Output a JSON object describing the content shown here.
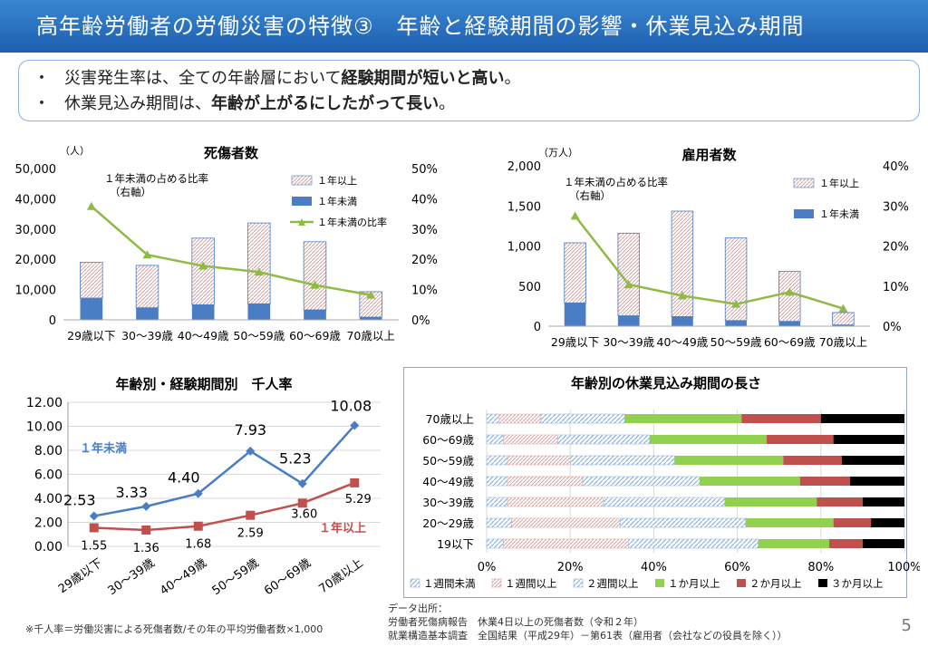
{
  "page_title": "高年齢労働者の労働災害の特徴③　年齢と経験期間の影響・休業見込み期間",
  "summary": [
    {
      "pre": "災害発生率は、全ての年齢層において",
      "bold": "経験期間が短いと高い",
      "post": "。"
    },
    {
      "pre": "休業見込み期間は、",
      "bold": "年齢が上がるにしたがって長い",
      "post": "。"
    }
  ],
  "bullet": "・",
  "colors": {
    "over1": "#f4c6c6",
    "under1": "#4a7dc4",
    "line": "#8fba45",
    "blue": "#4a7dc4",
    "red": "#c0504d",
    "green": "#92d050",
    "black": "#000000",
    "lightblue": "#a9c7e8"
  },
  "chart_data": [
    {
      "type": "bar",
      "title": "死傷者数",
      "ylabel": "（人）",
      "ylim": [
        0,
        50000
      ],
      "y2lim": [
        0,
        50
      ],
      "categories": [
        "29歳以下",
        "30～39歳",
        "40～49歳",
        "50～59歳",
        "60～69歳",
        "70歳以上"
      ],
      "series": [
        {
          "name": "１年未満",
          "values": [
            7200,
            4000,
            5000,
            5300,
            3300,
            900
          ]
        },
        {
          "name": "１年以上",
          "values": [
            11800,
            14000,
            22000,
            26700,
            22500,
            8400
          ]
        },
        {
          "name": "１年未満の比率",
          "values": [
            37.5,
            21.5,
            17.8,
            15.8,
            11.5,
            8.2
          ],
          "axis": "right"
        }
      ],
      "yticks": [
        "0",
        "10,000",
        "20,000",
        "30,000",
        "40,000",
        "50,000"
      ],
      "y2ticks": [
        "0%",
        "10%",
        "20%",
        "30%",
        "40%",
        "50%"
      ],
      "annotation": [
        "１年未満の占める比率",
        "（右軸）"
      ]
    },
    {
      "type": "bar",
      "title": "雇用者数",
      "ylabel": "（万人）",
      "ylim": [
        0,
        2000
      ],
      "y2lim": [
        0,
        40
      ],
      "categories": [
        "29歳以下",
        "30～39歳",
        "40～49歳",
        "50～59歳",
        "60～69歳",
        "70歳以上"
      ],
      "series": [
        {
          "name": "１年未満",
          "values": [
            290,
            130,
            120,
            70,
            60,
            15
          ]
        },
        {
          "name": "１年以上",
          "values": [
            750,
            1030,
            1315,
            1030,
            625,
            155
          ]
        },
        {
          "name": "１年未満の比率",
          "values": [
            27.5,
            10.4,
            7.6,
            5.5,
            8.5,
            4.4
          ],
          "axis": "right"
        }
      ],
      "yticks": [
        "0",
        "500",
        "1,000",
        "1,500",
        "2,000"
      ],
      "y2ticks": [
        "0%",
        "10%",
        "20%",
        "30%",
        "40%"
      ],
      "annotation": [
        "１年未満の占める比率",
        "（右軸）"
      ]
    },
    {
      "type": "line",
      "title": "年齢別・経験期間別　千人率",
      "ylim": [
        0,
        12
      ],
      "categories": [
        "29歳以下",
        "30～39歳",
        "40～49歳",
        "50～59歳",
        "60～69歳",
        "70歳以上"
      ],
      "yticks": [
        "0.00",
        "2.00",
        "4.00",
        "6.00",
        "8.00",
        "10.00",
        "12.00"
      ],
      "series": [
        {
          "name": "１年未満",
          "values": [
            2.53,
            3.33,
            4.4,
            7.93,
            5.23,
            10.08
          ],
          "labels": [
            "2.53",
            "3.33",
            "4.40",
            "7.93",
            "5.23",
            "10.08"
          ]
        },
        {
          "name": "１年以上",
          "values": [
            1.55,
            1.36,
            1.68,
            2.59,
            3.6,
            5.29
          ],
          "labels": [
            "1.55",
            "1.36",
            "1.68",
            "2.59",
            "3.60",
            "5.29"
          ]
        }
      ]
    },
    {
      "type": "bar",
      "orientation": "horizontal-stacked-100",
      "title": "年齢別の休業見込み期間の長さ",
      "categories": [
        "70歳以上",
        "60～69歳",
        "50～59歳",
        "40～49歳",
        "30～39歳",
        "20～29歳",
        "19以下"
      ],
      "xticks": [
        "0%",
        "20%",
        "40%",
        "60%",
        "80%",
        "100%"
      ],
      "series": [
        {
          "name": "１週間未満",
          "values": [
            3,
            4,
            5,
            5,
            5,
            6,
            4
          ]
        },
        {
          "name": "１週間以上",
          "values": [
            10,
            13,
            15,
            18,
            23,
            26,
            30
          ]
        },
        {
          "name": "２週間以上",
          "values": [
            20,
            22,
            25,
            28,
            29,
            30,
            31
          ]
        },
        {
          "name": "１か月以上",
          "values": [
            28,
            28,
            26,
            24,
            22,
            21,
            17
          ]
        },
        {
          "name": "２か月以上",
          "values": [
            19,
            16,
            14,
            12,
            11,
            9,
            8
          ]
        },
        {
          "name": "３か月以上",
          "values": [
            20,
            17,
            15,
            13,
            10,
            8,
            10
          ]
        }
      ]
    }
  ],
  "footnote": "※千人率＝労働災害による死傷者数/その年の平均労働者数×1,000",
  "source": [
    "データ出所：",
    "労働者死傷病報告　休業4日以上の死傷者数（令和２年）",
    "就業構造基本調査　全国結果（平成29年）－第61表（雇用者（会社などの役員を除く））"
  ],
  "page_number": "5"
}
